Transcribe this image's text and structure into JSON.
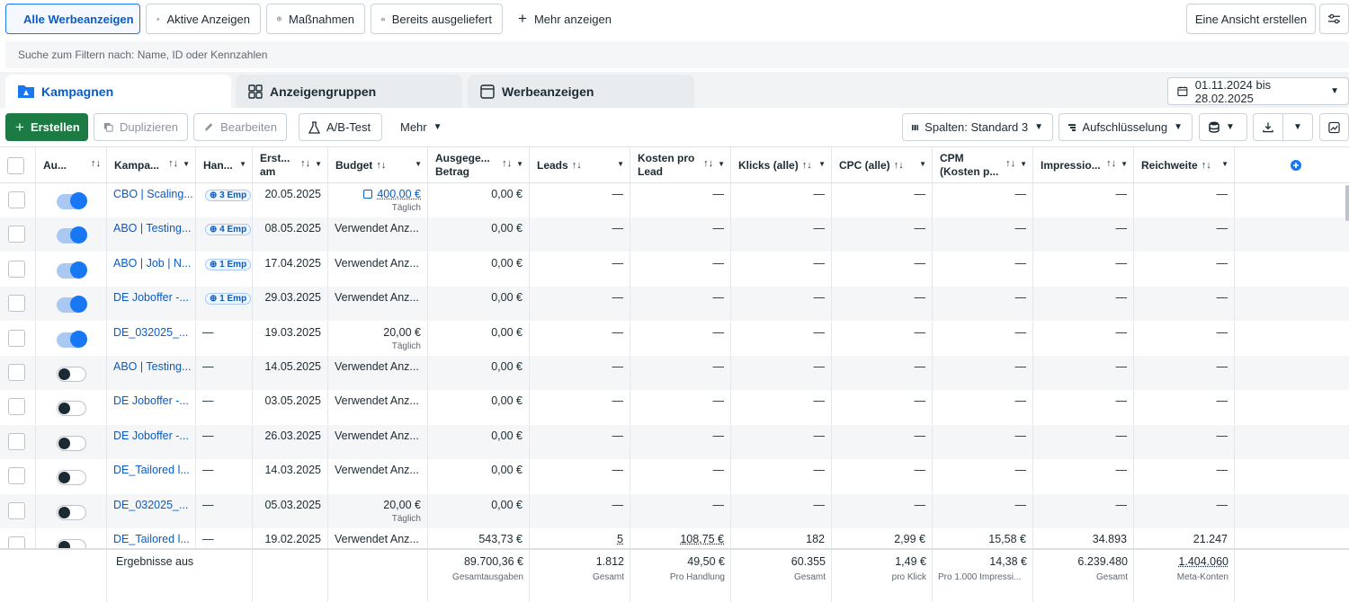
{
  "filters": {
    "all_ads": "Alle Werbeanzeigen",
    "active_ads": "Aktive Anzeigen",
    "actions": "Maßnahmen",
    "delivered": "Bereits ausgeliefert",
    "more": "Mehr anzeigen",
    "create_view": "Eine Ansicht erstellen"
  },
  "search": {
    "placeholder": "Suche zum Filtern nach: Name, ID oder Kennzahlen"
  },
  "tabs": {
    "campaigns": "Kampagnen",
    "adsets": "Anzeigengruppen",
    "ads": "Werbeanzeigen"
  },
  "date_range": "01.11.2024 bis 28.02.2025",
  "toolbar": {
    "create": "Erstellen",
    "duplicate": "Duplizieren",
    "edit": "Bearbeiten",
    "ab_test": "A/B-Test",
    "more": "Mehr",
    "columns": "Spalten: Standard 3",
    "breakdown": "Aufschlüsselung"
  },
  "columns": {
    "delivery": "Au...",
    "campaign": "Kampa...",
    "actions": "Han...",
    "created": "Erst... am",
    "budget": "Budget",
    "spent": "Ausgege... Betrag",
    "leads": "Leads",
    "cost_per_lead": "Kosten pro Lead",
    "clicks": "Klicks (alle)",
    "cpc": "CPC (alle)",
    "cpm": "CPM (Kosten p...",
    "impressions": "Impressio...",
    "reach": "Reichweite"
  },
  "rows": [
    {
      "on": true,
      "name": "CBO | Scaling...",
      "rec": "3 Emp",
      "created": "20.05.2025",
      "budget": "400,00 €",
      "budget_sub": "Täglich",
      "budget_link": true,
      "spent": "0,00 €",
      "leads": "—",
      "cpl": "—",
      "clicks": "—",
      "cpc": "—",
      "cpm": "—",
      "impr": "—",
      "reach": "—"
    },
    {
      "on": true,
      "name": "ABO | Testing...",
      "rec": "4 Emp",
      "created": "08.05.2025",
      "budget": "Verwendet Anz...",
      "budget_sub": "",
      "budget_link": false,
      "spent": "0,00 €",
      "leads": "—",
      "cpl": "—",
      "clicks": "—",
      "cpc": "—",
      "cpm": "—",
      "impr": "—",
      "reach": "—"
    },
    {
      "on": true,
      "name": "ABO | Job | N...",
      "rec": "1 Emp",
      "created": "17.04.2025",
      "budget": "Verwendet Anz...",
      "budget_sub": "",
      "budget_link": false,
      "spent": "0,00 €",
      "leads": "—",
      "cpl": "—",
      "clicks": "—",
      "cpc": "—",
      "cpm": "—",
      "impr": "—",
      "reach": "—"
    },
    {
      "on": true,
      "name": "DE Joboffer -...",
      "rec": "1 Emp",
      "created": "29.03.2025",
      "budget": "Verwendet Anz...",
      "budget_sub": "",
      "budget_link": false,
      "spent": "0,00 €",
      "leads": "—",
      "cpl": "—",
      "clicks": "—",
      "cpc": "—",
      "cpm": "—",
      "impr": "—",
      "reach": "—"
    },
    {
      "on": true,
      "name": "DE_032025_...",
      "rec": "—",
      "created": "19.03.2025",
      "budget": "20,00 €",
      "budget_sub": "Täglich",
      "budget_link": false,
      "spent": "0,00 €",
      "leads": "—",
      "cpl": "—",
      "clicks": "—",
      "cpc": "—",
      "cpm": "—",
      "impr": "—",
      "reach": "—"
    },
    {
      "on": false,
      "name": "ABO | Testing...",
      "rec": "—",
      "created": "14.05.2025",
      "budget": "Verwendet Anz...",
      "budget_sub": "",
      "budget_link": false,
      "spent": "0,00 €",
      "leads": "—",
      "cpl": "—",
      "clicks": "—",
      "cpc": "—",
      "cpm": "—",
      "impr": "—",
      "reach": "—"
    },
    {
      "on": false,
      "name": "DE Joboffer -...",
      "rec": "—",
      "created": "03.05.2025",
      "budget": "Verwendet Anz...",
      "budget_sub": "",
      "budget_link": false,
      "spent": "0,00 €",
      "leads": "—",
      "cpl": "—",
      "clicks": "—",
      "cpc": "—",
      "cpm": "—",
      "impr": "—",
      "reach": "—"
    },
    {
      "on": false,
      "name": "DE Joboffer -...",
      "rec": "—",
      "created": "26.03.2025",
      "budget": "Verwendet Anz...",
      "budget_sub": "",
      "budget_link": false,
      "spent": "0,00 €",
      "leads": "—",
      "cpl": "—",
      "clicks": "—",
      "cpc": "—",
      "cpm": "—",
      "impr": "—",
      "reach": "—"
    },
    {
      "on": false,
      "name": "DE_Tailored l...",
      "rec": "—",
      "created": "14.03.2025",
      "budget": "Verwendet Anz...",
      "budget_sub": "",
      "budget_link": false,
      "spent": "0,00 €",
      "leads": "—",
      "cpl": "—",
      "clicks": "—",
      "cpc": "—",
      "cpm": "—",
      "impr": "—",
      "reach": "—"
    },
    {
      "on": false,
      "name": "DE_032025_...",
      "rec": "—",
      "created": "05.03.2025",
      "budget": "20,00 €",
      "budget_sub": "Täglich",
      "budget_link": false,
      "spent": "0,00 €",
      "leads": "—",
      "cpl": "—",
      "clicks": "—",
      "cpc": "—",
      "cpm": "—",
      "impr": "—",
      "reach": "—"
    },
    {
      "on": false,
      "name": "DE_Tailored l...",
      "rec": "—",
      "created": "19.02.2025",
      "budget": "Verwendet Anz...",
      "budget_sub": "",
      "budget_link": false,
      "spent": "543,73 €",
      "leads": "5",
      "cpl": "108,75 €",
      "clicks": "182",
      "cpc": "2,99 €",
      "cpm": "15,58 €",
      "impr": "34.893",
      "reach": "21.247"
    }
  ],
  "totals": {
    "label": "Ergebnisse aus",
    "spent": "89.700,36 €",
    "spent_sub": "Gesamtausgaben",
    "leads": "1.812",
    "leads_sub": "Gesamt",
    "cpl": "49,50 €",
    "cpl_sub": "Pro Handlung",
    "clicks": "60.355",
    "clicks_sub": "Gesamt",
    "cpc": "1,49 €",
    "cpc_sub": "pro Klick",
    "cpm": "14,38 €",
    "cpm_sub": "Pro 1.000 Impressi...",
    "impr": "6.239.480",
    "impr_sub": "Gesamt",
    "reach": "1.404.060",
    "reach_sub": "Meta-Konten"
  },
  "colors": {
    "accent": "#1877f2",
    "create_green": "#1b7b43",
    "link": "#0a5bc4"
  }
}
